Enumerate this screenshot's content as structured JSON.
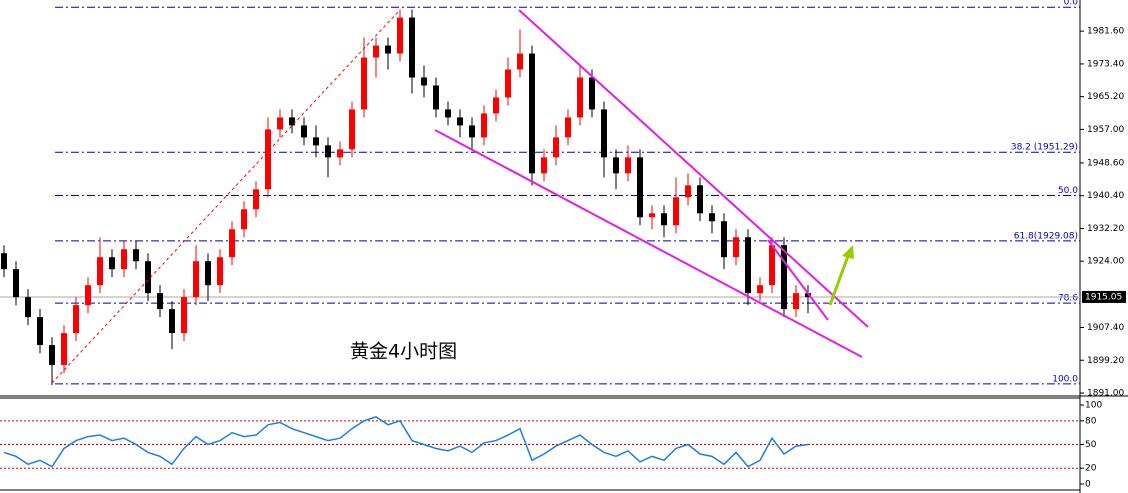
{
  "chart_data": {
    "type": "candlestick",
    "annotation": "黄金4小时图",
    "open": [
      1926,
      1922,
      1915,
      1910,
      1903,
      1898,
      1906,
      1913,
      1918,
      1925,
      1922,
      1927,
      1924,
      1916,
      1912,
      1906,
      1915,
      1924,
      1918,
      1925,
      1932,
      1937,
      1942,
      1957,
      1960,
      1958,
      1955,
      1953,
      1950,
      1952,
      1962,
      1975,
      1978,
      1976,
      1985,
      1970,
      1968,
      1962,
      1960,
      1958,
      1955,
      1961,
      1965,
      1972,
      1976,
      1946,
      1950,
      1955,
      1960,
      1970,
      1962,
      1950,
      1946,
      1950,
      1935,
      1936,
      1933,
      1940,
      1943,
      1936,
      1934,
      1925,
      1930,
      1916,
      1918,
      1928,
      1912,
      1916
    ],
    "high": [
      1928,
      1924,
      1917,
      1912,
      1905,
      1908,
      1915,
      1920,
      1930,
      1927,
      1929,
      1929,
      1926,
      1918,
      1914,
      1917,
      1928,
      1926,
      1927,
      1934,
      1939,
      1944,
      1960,
      1962,
      1962,
      1960,
      1958,
      1955,
      1954,
      1964,
      1980,
      1980,
      1980,
      1987,
      1987,
      1973,
      1970,
      1964,
      1962,
      1960,
      1963,
      1967,
      1975,
      1982,
      1978,
      1952,
      1958,
      1962,
      1973,
      1972,
      1964,
      1952,
      1953,
      1952,
      1938,
      1938,
      1945,
      1946,
      1945,
      1938,
      1936,
      1932,
      1932,
      1920,
      1930,
      1930,
      1918,
      1918
    ],
    "low": [
      1920,
      1913,
      1908,
      1901,
      1893,
      1896,
      1904,
      1911,
      1916,
      1920,
      1920,
      1922,
      1914,
      1910,
      1902,
      1904,
      1913,
      1914,
      1916,
      1923,
      1930,
      1935,
      1940,
      1955,
      1956,
      1953,
      1950,
      1945,
      1948,
      1950,
      1960,
      1970,
      1972,
      1974,
      1966,
      1965,
      1960,
      1958,
      1955,
      1952,
      1953,
      1959,
      1963,
      1970,
      1943,
      1944,
      1948,
      1953,
      1958,
      1960,
      1945,
      1942,
      1944,
      1933,
      1932,
      1930,
      1931,
      1938,
      1934,
      1931,
      1922,
      1923,
      1913,
      1914,
      1916,
      1910,
      1910,
      1911
    ],
    "close": [
      1922,
      1915,
      1910,
      1903,
      1898,
      1906,
      1913,
      1918,
      1925,
      1922,
      1927,
      1924,
      1916,
      1912,
      1906,
      1915,
      1924,
      1918,
      1925,
      1932,
      1937,
      1942,
      1957,
      1960,
      1958,
      1955,
      1953,
      1950,
      1952,
      1962,
      1975,
      1978,
      1976,
      1985,
      1970,
      1968,
      1962,
      1960,
      1958,
      1955,
      1961,
      1965,
      1972,
      1976,
      1946,
      1950,
      1955,
      1960,
      1970,
      1962,
      1950,
      1946,
      1950,
      1935,
      1936,
      1933,
      1940,
      1943,
      1936,
      1934,
      1925,
      1930,
      1916,
      1918,
      1928,
      1912,
      1916,
      1915
    ],
    "up_color": "#ff0000",
    "down_color": "#000000",
    "ylim": [
      1890.5,
      1989.4
    ],
    "yticks": [
      {
        "value": 1891,
        "label": "1891.00"
      },
      {
        "value": 1899.2,
        "label": "1899.20"
      },
      {
        "value": 1907.4,
        "label": "1907.40"
      },
      {
        "value": 1924,
        "label": "1924.00"
      },
      {
        "value": 1932.2,
        "label": "1932.20"
      },
      {
        "value": 1940.4,
        "label": "1940.40"
      },
      {
        "value": 1948.6,
        "label": "1948.60"
      },
      {
        "value": 1957,
        "label": "1957.00"
      },
      {
        "value": 1965.2,
        "label": "1965.20"
      },
      {
        "value": 1973.4,
        "label": "1973.40"
      },
      {
        "value": 1981.6,
        "label": "1981.60"
      }
    ],
    "current_price": 1915.05,
    "fib_levels": [
      {
        "label": "0.0",
        "price": 1987.6
      },
      {
        "label": "38.2 (1951.29)",
        "price": 1951.29
      },
      {
        "label": "50.0",
        "price": 1940.45
      },
      {
        "label": "61.8(1929.08)",
        "price": 1929.08
      },
      {
        "label": "78.6",
        "price": 1913.5
      },
      {
        "label": "100.0",
        "price": 1893.3
      }
    ],
    "rsi": {
      "values": [
        40,
        35,
        25,
        30,
        22,
        45,
        55,
        60,
        62,
        55,
        58,
        50,
        40,
        35,
        25,
        45,
        60,
        50,
        55,
        65,
        60,
        62,
        75,
        78,
        70,
        65,
        60,
        55,
        58,
        70,
        80,
        85,
        75,
        80,
        55,
        50,
        45,
        42,
        48,
        40,
        52,
        55,
        62,
        70,
        30,
        38,
        48,
        55,
        62,
        50,
        40,
        35,
        42,
        28,
        35,
        30,
        45,
        50,
        38,
        35,
        25,
        40,
        22,
        30,
        58,
        38,
        48,
        50
      ],
      "color": "#1e7fe0",
      "ylim": [
        -7.6,
        108.9
      ],
      "yticks": [
        0,
        20,
        50,
        80,
        100
      ],
      "levels": [
        20,
        50,
        80
      ]
    }
  }
}
